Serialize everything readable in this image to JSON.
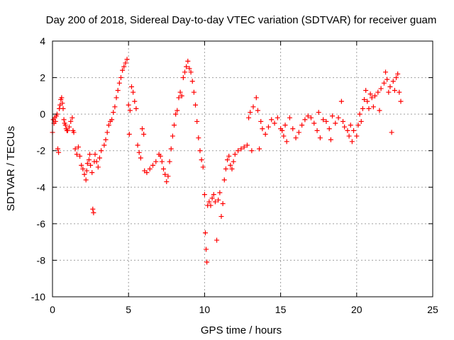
{
  "chart_data": {
    "type": "scatter",
    "title": "Day 200 of 2018, Sidereal Day-to-day VTEC variation (SDTVAR) for receiver guam",
    "xlabel": "GPS time / hours",
    "ylabel": "SDTVAR / TECUs",
    "xlim": [
      0,
      25
    ],
    "ylim": [
      -10,
      4
    ],
    "xticks": [
      0,
      5,
      10,
      15,
      20,
      25
    ],
    "yticks": [
      -10,
      -8,
      -6,
      -4,
      -2,
      0,
      2,
      4
    ],
    "grid": true,
    "marker": "+",
    "color": "#ff0000",
    "series": [
      {
        "name": "SDTVAR",
        "points": [
          [
            0.0,
            -1.0
          ],
          [
            0.05,
            -0.3
          ],
          [
            0.1,
            -0.5
          ],
          [
            0.15,
            -0.2
          ],
          [
            0.2,
            -0.4
          ],
          [
            0.25,
            -0.1
          ],
          [
            0.3,
            0.0
          ],
          [
            0.35,
            -1.9
          ],
          [
            0.4,
            -2.1
          ],
          [
            0.45,
            0.3
          ],
          [
            0.5,
            0.5
          ],
          [
            0.55,
            0.8
          ],
          [
            0.6,
            0.9
          ],
          [
            0.65,
            0.6
          ],
          [
            0.7,
            0.3
          ],
          [
            0.75,
            -0.3
          ],
          [
            0.8,
            -0.5
          ],
          [
            0.85,
            -0.6
          ],
          [
            0.9,
            -0.8
          ],
          [
            0.95,
            -0.9
          ],
          [
            1.0,
            -0.9
          ],
          [
            1.1,
            -0.7
          ],
          [
            1.2,
            -0.4
          ],
          [
            1.3,
            -0.2
          ],
          [
            1.35,
            -0.9
          ],
          [
            1.4,
            -1.0
          ],
          [
            1.5,
            -1.9
          ],
          [
            1.6,
            -2.2
          ],
          [
            1.7,
            -1.8
          ],
          [
            1.8,
            -2.3
          ],
          [
            1.9,
            -2.8
          ],
          [
            2.0,
            -3.0
          ],
          [
            2.1,
            -3.3
          ],
          [
            2.2,
            -3.6
          ],
          [
            2.25,
            -3.1
          ],
          [
            2.3,
            -2.7
          ],
          [
            2.4,
            -2.5
          ],
          [
            2.45,
            -2.2
          ],
          [
            2.5,
            -2.8
          ],
          [
            2.6,
            -3.2
          ],
          [
            2.65,
            -5.2
          ],
          [
            2.7,
            -5.4
          ],
          [
            2.75,
            -2.6
          ],
          [
            2.8,
            -2.2
          ],
          [
            2.9,
            -2.6
          ],
          [
            3.0,
            -2.9
          ],
          [
            3.1,
            -2.4
          ],
          [
            3.2,
            -2.0
          ],
          [
            3.4,
            -1.7
          ],
          [
            3.5,
            -1.4
          ],
          [
            3.6,
            -1.0
          ],
          [
            3.7,
            -0.6
          ],
          [
            3.8,
            -0.4
          ],
          [
            3.9,
            -0.3
          ],
          [
            4.0,
            0.1
          ],
          [
            4.1,
            0.4
          ],
          [
            4.2,
            0.9
          ],
          [
            4.3,
            1.3
          ],
          [
            4.4,
            1.7
          ],
          [
            4.5,
            2.0
          ],
          [
            4.6,
            2.4
          ],
          [
            4.7,
            2.6
          ],
          [
            4.8,
            2.8
          ],
          [
            4.9,
            3.0
          ],
          [
            5.0,
            0.5
          ],
          [
            5.05,
            -1.1
          ],
          [
            5.1,
            0.2
          ],
          [
            5.2,
            1.5
          ],
          [
            5.3,
            1.2
          ],
          [
            5.4,
            0.7
          ],
          [
            5.5,
            0.3
          ],
          [
            5.6,
            -1.7
          ],
          [
            5.7,
            -2.1
          ],
          [
            5.8,
            -2.4
          ],
          [
            5.9,
            -0.8
          ],
          [
            6.0,
            -1.1
          ],
          [
            6.05,
            -3.1
          ],
          [
            6.2,
            -3.2
          ],
          [
            6.4,
            -3.0
          ],
          [
            6.6,
            -2.8
          ],
          [
            6.8,
            -2.6
          ],
          [
            7.0,
            -2.2
          ],
          [
            7.1,
            -2.3
          ],
          [
            7.2,
            -2.6
          ],
          [
            7.3,
            -3.0
          ],
          [
            7.4,
            -3.3
          ],
          [
            7.5,
            -3.7
          ],
          [
            7.6,
            -3.4
          ],
          [
            7.7,
            -2.6
          ],
          [
            7.8,
            -1.9
          ],
          [
            7.9,
            -1.2
          ],
          [
            8.0,
            -0.6
          ],
          [
            8.1,
            0.0
          ],
          [
            8.2,
            0.2
          ],
          [
            8.3,
            0.9
          ],
          [
            8.4,
            1.2
          ],
          [
            8.5,
            1.0
          ],
          [
            8.6,
            2.0
          ],
          [
            8.7,
            2.3
          ],
          [
            8.8,
            2.6
          ],
          [
            8.9,
            2.9
          ],
          [
            9.0,
            2.5
          ],
          [
            9.1,
            2.3
          ],
          [
            9.2,
            1.8
          ],
          [
            9.3,
            1.2
          ],
          [
            9.4,
            0.5
          ],
          [
            9.5,
            -0.4
          ],
          [
            9.6,
            -1.3
          ],
          [
            9.7,
            -2.0
          ],
          [
            9.8,
            -2.5
          ],
          [
            9.9,
            -2.9
          ],
          [
            10.0,
            -4.4
          ],
          [
            10.05,
            -6.5
          ],
          [
            10.1,
            -7.4
          ],
          [
            10.15,
            -8.1
          ],
          [
            10.2,
            -5.0
          ],
          [
            10.3,
            -4.8
          ],
          [
            10.4,
            -5.0
          ],
          [
            10.5,
            -4.6
          ],
          [
            10.6,
            -4.4
          ],
          [
            10.7,
            -4.8
          ],
          [
            10.8,
            -6.9
          ],
          [
            10.9,
            -4.7
          ],
          [
            11.0,
            -4.3
          ],
          [
            11.1,
            -5.6
          ],
          [
            11.2,
            -4.9
          ],
          [
            11.3,
            -3.6
          ],
          [
            11.4,
            -3.0
          ],
          [
            11.5,
            -2.5
          ],
          [
            11.6,
            -2.3
          ],
          [
            11.7,
            -2.8
          ],
          [
            11.8,
            -3.0
          ],
          [
            11.9,
            -2.6
          ],
          [
            12.0,
            -2.2
          ],
          [
            12.2,
            -2.0
          ],
          [
            12.4,
            -1.9
          ],
          [
            12.6,
            -1.8
          ],
          [
            12.8,
            -1.7
          ],
          [
            12.9,
            -0.2
          ],
          [
            13.0,
            0.1
          ],
          [
            13.1,
            -2.0
          ],
          [
            13.2,
            0.4
          ],
          [
            13.4,
            0.9
          ],
          [
            13.5,
            0.2
          ],
          [
            13.6,
            -1.9
          ],
          [
            13.7,
            -0.4
          ],
          [
            13.8,
            -0.8
          ],
          [
            14.0,
            -1.1
          ],
          [
            14.2,
            -0.7
          ],
          [
            14.4,
            -0.3
          ],
          [
            14.6,
            -0.5
          ],
          [
            14.8,
            -0.2
          ],
          [
            15.0,
            -0.8
          ],
          [
            15.1,
            -0.9
          ],
          [
            15.2,
            -1.2
          ],
          [
            15.3,
            -0.6
          ],
          [
            15.4,
            -1.5
          ],
          [
            15.6,
            -0.2
          ],
          [
            15.8,
            -0.8
          ],
          [
            16.0,
            -1.3
          ],
          [
            16.2,
            -1.0
          ],
          [
            16.4,
            -0.6
          ],
          [
            16.6,
            -0.3
          ],
          [
            16.8,
            -0.1
          ],
          [
            17.0,
            -0.2
          ],
          [
            17.2,
            -0.5
          ],
          [
            17.4,
            -0.9
          ],
          [
            17.5,
            0.1
          ],
          [
            17.6,
            -1.3
          ],
          [
            17.8,
            -0.3
          ],
          [
            18.0,
            -0.4
          ],
          [
            18.2,
            -0.8
          ],
          [
            18.3,
            -1.4
          ],
          [
            18.4,
            -0.1
          ],
          [
            18.6,
            -0.5
          ],
          [
            18.8,
            -0.2
          ],
          [
            19.0,
            0.7
          ],
          [
            19.1,
            -0.4
          ],
          [
            19.2,
            -0.7
          ],
          [
            19.4,
            -0.9
          ],
          [
            19.5,
            -1.2
          ],
          [
            19.6,
            -0.6
          ],
          [
            19.7,
            -1.5
          ],
          [
            19.8,
            -0.9
          ],
          [
            20.0,
            -1.2
          ],
          [
            20.1,
            -0.6
          ],
          [
            20.2,
            0.0
          ],
          [
            20.3,
            -0.4
          ],
          [
            20.4,
            0.3
          ],
          [
            20.5,
            0.8
          ],
          [
            20.6,
            1.3
          ],
          [
            20.7,
            0.7
          ],
          [
            20.8,
            0.3
          ],
          [
            20.9,
            1.1
          ],
          [
            21.0,
            0.9
          ],
          [
            21.1,
            0.4
          ],
          [
            21.2,
            1.0
          ],
          [
            21.4,
            1.2
          ],
          [
            21.5,
            0.2
          ],
          [
            21.6,
            1.4
          ],
          [
            21.8,
            1.7
          ],
          [
            21.9,
            2.3
          ],
          [
            22.0,
            1.9
          ],
          [
            22.1,
            1.2
          ],
          [
            22.2,
            1.5
          ],
          [
            22.3,
            -1.0
          ],
          [
            22.4,
            1.8
          ],
          [
            22.5,
            1.3
          ],
          [
            22.6,
            2.0
          ],
          [
            22.7,
            2.2
          ],
          [
            22.8,
            1.2
          ],
          [
            22.9,
            0.7
          ]
        ]
      }
    ]
  }
}
